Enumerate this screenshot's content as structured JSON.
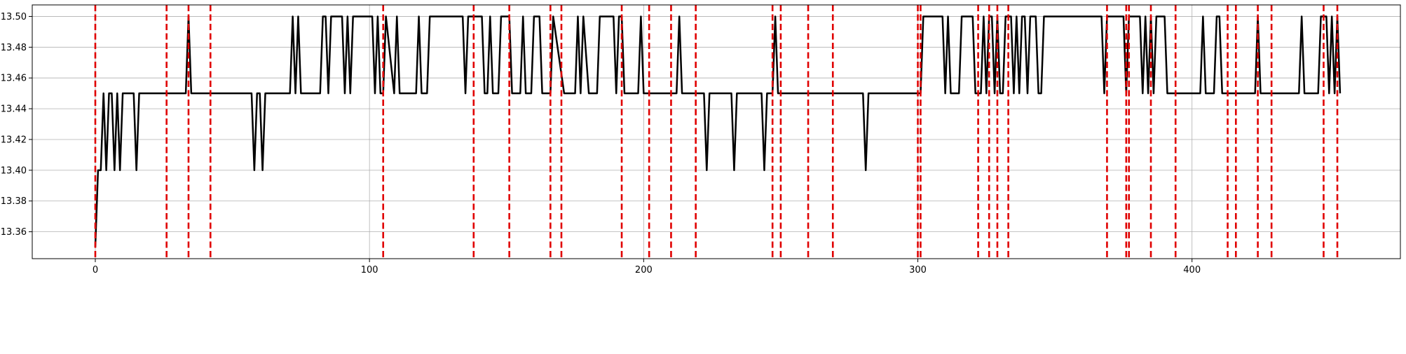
{
  "chart_data": {
    "type": "line",
    "title": "",
    "xlabel": "",
    "ylabel": "",
    "xlim": [
      -23,
      476
    ],
    "ylim": [
      13.3425,
      13.5075
    ],
    "xticks": [
      0,
      100,
      200,
      300,
      400
    ],
    "yticks": [
      13.36,
      13.38,
      13.4,
      13.42,
      13.44,
      13.46,
      13.48,
      13.5
    ],
    "ytick_labels": [
      "13.36",
      "13.38",
      "13.40",
      "13.42",
      "13.44",
      "13.46",
      "13.48",
      "13.50"
    ],
    "grid": true,
    "series": [
      {
        "color": "#000000",
        "points": [
          [
            0,
            13.35
          ],
          [
            1,
            13.4
          ],
          [
            2,
            13.4
          ],
          [
            3,
            13.45
          ],
          [
            4,
            13.4
          ],
          [
            5,
            13.45
          ],
          [
            6,
            13.45
          ],
          [
            7,
            13.4
          ],
          [
            8,
            13.45
          ],
          [
            9,
            13.4
          ],
          [
            10,
            13.45
          ],
          [
            14,
            13.45
          ],
          [
            15,
            13.4
          ],
          [
            16,
            13.45
          ],
          [
            33,
            13.45
          ],
          [
            34,
            13.5
          ],
          [
            35,
            13.45
          ],
          [
            57,
            13.45
          ],
          [
            58,
            13.4
          ],
          [
            59,
            13.45
          ],
          [
            60,
            13.45
          ],
          [
            61,
            13.4
          ],
          [
            62,
            13.45
          ],
          [
            71,
            13.45
          ],
          [
            72,
            13.5
          ],
          [
            73,
            13.45
          ],
          [
            74,
            13.5
          ],
          [
            75,
            13.45
          ],
          [
            82,
            13.45
          ],
          [
            83,
            13.5
          ],
          [
            84,
            13.5
          ],
          [
            85,
            13.45
          ],
          [
            86,
            13.5
          ],
          [
            90,
            13.5
          ],
          [
            91,
            13.45
          ],
          [
            92,
            13.5
          ],
          [
            93,
            13.45
          ],
          [
            94,
            13.5
          ],
          [
            101,
            13.5
          ],
          [
            102,
            13.45
          ],
          [
            103,
            13.5
          ],
          [
            104,
            13.45
          ],
          [
            105,
            13.45
          ],
          [
            106,
            13.5
          ],
          [
            109,
            13.45
          ],
          [
            110,
            13.5
          ],
          [
            111,
            13.45
          ],
          [
            117,
            13.45
          ],
          [
            118,
            13.5
          ],
          [
            119,
            13.45
          ],
          [
            121,
            13.45
          ],
          [
            122,
            13.5
          ],
          [
            134,
            13.5
          ],
          [
            135,
            13.45
          ],
          [
            136,
            13.5
          ],
          [
            141,
            13.5
          ],
          [
            142,
            13.45
          ],
          [
            143,
            13.45
          ],
          [
            144,
            13.5
          ],
          [
            145,
            13.45
          ],
          [
            147,
            13.45
          ],
          [
            148,
            13.5
          ],
          [
            151,
            13.5
          ],
          [
            152,
            13.45
          ],
          [
            155,
            13.45
          ],
          [
            156,
            13.5
          ],
          [
            157,
            13.45
          ],
          [
            159,
            13.45
          ],
          [
            160,
            13.5
          ],
          [
            162,
            13.5
          ],
          [
            163,
            13.45
          ],
          [
            166,
            13.45
          ],
          [
            167,
            13.5
          ],
          [
            171,
            13.45
          ],
          [
            175,
            13.45
          ],
          [
            176,
            13.5
          ],
          [
            177,
            13.45
          ],
          [
            178,
            13.5
          ],
          [
            180,
            13.45
          ],
          [
            183,
            13.45
          ],
          [
            184,
            13.5
          ],
          [
            189,
            13.5
          ],
          [
            190,
            13.45
          ],
          [
            191,
            13.5
          ],
          [
            192,
            13.5
          ],
          [
            193,
            13.45
          ],
          [
            198,
            13.45
          ],
          [
            199,
            13.5
          ],
          [
            200,
            13.45
          ],
          [
            212,
            13.45
          ],
          [
            213,
            13.5
          ],
          [
            214,
            13.45
          ],
          [
            222,
            13.45
          ],
          [
            223,
            13.4
          ],
          [
            224,
            13.45
          ],
          [
            232,
            13.45
          ],
          [
            233,
            13.4
          ],
          [
            234,
            13.45
          ],
          [
            243,
            13.45
          ],
          [
            244,
            13.4
          ],
          [
            245,
            13.45
          ],
          [
            247,
            13.45
          ],
          [
            248,
            13.5
          ],
          [
            249,
            13.45
          ],
          [
            280,
            13.45
          ],
          [
            281,
            13.4
          ],
          [
            282,
            13.45
          ],
          [
            300,
            13.45
          ],
          [
            301,
            13.45
          ],
          [
            302,
            13.5
          ],
          [
            309,
            13.5
          ],
          [
            310,
            13.45
          ],
          [
            311,
            13.5
          ],
          [
            312,
            13.45
          ],
          [
            315,
            13.45
          ],
          [
            316,
            13.5
          ],
          [
            320,
            13.5
          ],
          [
            321,
            13.45
          ],
          [
            323,
            13.45
          ],
          [
            324,
            13.5
          ],
          [
            325,
            13.45
          ],
          [
            326,
            13.5
          ],
          [
            327,
            13.5
          ],
          [
            328,
            13.45
          ],
          [
            329,
            13.5
          ],
          [
            330,
            13.45
          ],
          [
            331,
            13.45
          ],
          [
            332,
            13.5
          ],
          [
            334,
            13.5
          ],
          [
            335,
            13.45
          ],
          [
            336,
            13.5
          ],
          [
            337,
            13.45
          ],
          [
            338,
            13.5
          ],
          [
            339,
            13.5
          ],
          [
            340,
            13.45
          ],
          [
            341,
            13.5
          ],
          [
            343,
            13.5
          ],
          [
            344,
            13.45
          ],
          [
            345,
            13.45
          ],
          [
            346,
            13.5
          ],
          [
            367,
            13.5
          ],
          [
            368,
            13.45
          ],
          [
            369,
            13.5
          ],
          [
            375,
            13.5
          ],
          [
            376,
            13.45
          ],
          [
            377,
            13.5
          ],
          [
            381,
            13.5
          ],
          [
            382,
            13.45
          ],
          [
            383,
            13.5
          ],
          [
            384,
            13.45
          ],
          [
            385,
            13.5
          ],
          [
            386,
            13.45
          ],
          [
            387,
            13.5
          ],
          [
            390,
            13.5
          ],
          [
            391,
            13.45
          ],
          [
            403,
            13.45
          ],
          [
            404,
            13.5
          ],
          [
            405,
            13.45
          ],
          [
            408,
            13.45
          ],
          [
            409,
            13.5
          ],
          [
            410,
            13.5
          ],
          [
            411,
            13.45
          ],
          [
            423,
            13.45
          ],
          [
            424,
            13.5
          ],
          [
            425,
            13.45
          ],
          [
            439,
            13.45
          ],
          [
            440,
            13.5
          ],
          [
            441,
            13.45
          ],
          [
            446,
            13.45
          ],
          [
            447,
            13.5
          ],
          [
            449,
            13.5
          ],
          [
            450,
            13.45
          ],
          [
            451,
            13.5
          ],
          [
            452,
            13.45
          ],
          [
            453,
            13.5
          ],
          [
            454,
            13.45
          ]
        ]
      }
    ],
    "vlines": {
      "color": "#e00000",
      "style": "dashed",
      "x": [
        0,
        26,
        34,
        42,
        105,
        138,
        151,
        166,
        170,
        192,
        202,
        210,
        219,
        247,
        250,
        260,
        269,
        300,
        301,
        322,
        326,
        329,
        333,
        369,
        376,
        377,
        385,
        394,
        413,
        416,
        424,
        429,
        448,
        453
      ]
    }
  }
}
